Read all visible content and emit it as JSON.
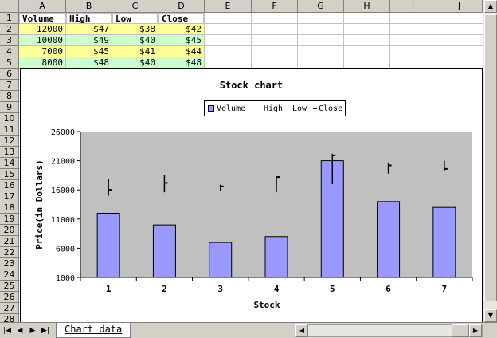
{
  "columns": [
    "A",
    "B",
    "C",
    "D",
    "E",
    "F",
    "G",
    "H",
    "I",
    "J"
  ],
  "rows": [
    "1",
    "2",
    "3",
    "4",
    "5",
    "6",
    "7",
    "8",
    "9",
    "10",
    "11",
    "12",
    "13",
    "14",
    "15",
    "16",
    "17",
    "18",
    "19",
    "20",
    "21",
    "22",
    "23",
    "24",
    "25",
    "26",
    "27",
    "28"
  ],
  "table": {
    "headers": [
      "Volume",
      "High",
      "Low",
      "Close"
    ],
    "rows": [
      [
        "12000",
        "$47",
        "$38",
        "$42"
      ],
      [
        "10000",
        "$49",
        "$40",
        "$45"
      ],
      [
        "7000",
        "$45",
        "$41",
        "$44"
      ],
      [
        "8000",
        "$48",
        "$40",
        "$48"
      ]
    ],
    "row_colors": [
      "#ffff99",
      "#ccffcc",
      "#ffff99",
      "#ccffcc"
    ]
  },
  "sheet_tab": "Chart data",
  "chart_data": {
    "type": "bar",
    "title": "Stock chart",
    "xlabel": "Stock",
    "ylabel": "Price(in Dollars)",
    "categories": [
      "1",
      "2",
      "3",
      "4",
      "5",
      "6",
      "7"
    ],
    "ylim": [
      1000,
      26000
    ],
    "yticks": [
      "26000",
      "21000",
      "16000",
      "11000",
      "6000",
      "1000"
    ],
    "legend": {
      "position": "top",
      "entries": [
        "Volume",
        "High",
        "Low",
        "Close"
      ]
    },
    "series": [
      {
        "name": "Volume",
        "values": [
          12000,
          10000,
          7000,
          8000,
          21000,
          14000,
          13000
        ]
      },
      {
        "name": "High",
        "values": [
          17800,
          18600,
          16900,
          18300,
          22200,
          20700,
          21000
        ]
      },
      {
        "name": "Low",
        "values": [
          15000,
          15600,
          15800,
          15600,
          17000,
          18800,
          19300
        ]
      },
      {
        "name": "Close",
        "values": [
          16000,
          17200,
          16600,
          18200,
          21900,
          20200,
          19600
        ]
      }
    ],
    "colors": {
      "bar": "#9999ff",
      "plot_bg": "#c0c0c0",
      "hilo": "#000000"
    },
    "grid": false
  }
}
